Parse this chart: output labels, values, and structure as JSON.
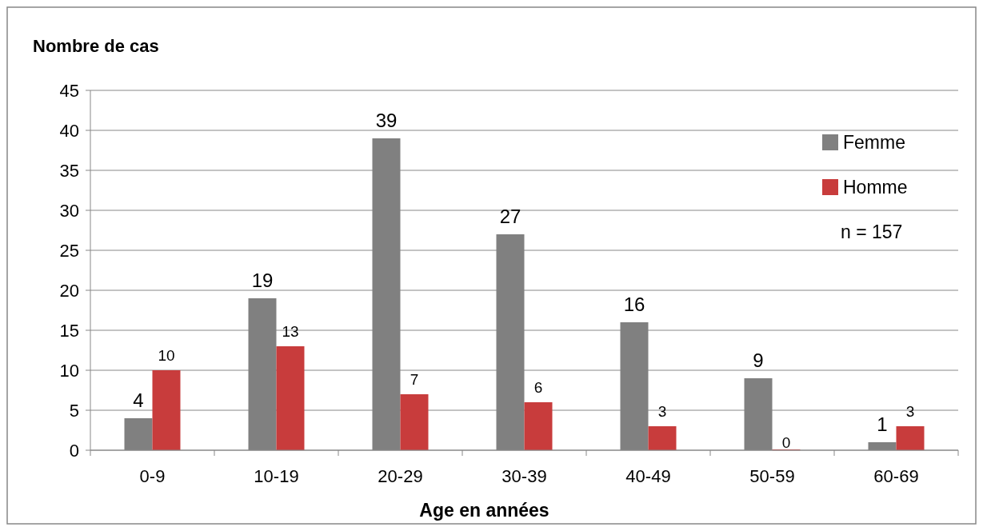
{
  "chart_data": {
    "type": "bar",
    "ylabel": "Nombre de cas",
    "xlabel": "Age en années",
    "categories": [
      "0-9",
      "10-19",
      "20-29",
      "30-39",
      "40-49",
      "50-59",
      "60-69"
    ],
    "series": [
      {
        "name": "Femme",
        "color": "#808080",
        "values": [
          4,
          19,
          39,
          27,
          16,
          9,
          1
        ]
      },
      {
        "name": "Homme",
        "color": "#c83c3c",
        "values": [
          10,
          13,
          7,
          6,
          3,
          0,
          3
        ]
      }
    ],
    "ylim": [
      0,
      45
    ],
    "yticks": [
      0,
      5,
      10,
      15,
      20,
      25,
      30,
      35,
      40,
      45
    ],
    "grid": "y",
    "legend": "top right",
    "data_labels": true,
    "annotations": [
      "n = 157"
    ]
  }
}
